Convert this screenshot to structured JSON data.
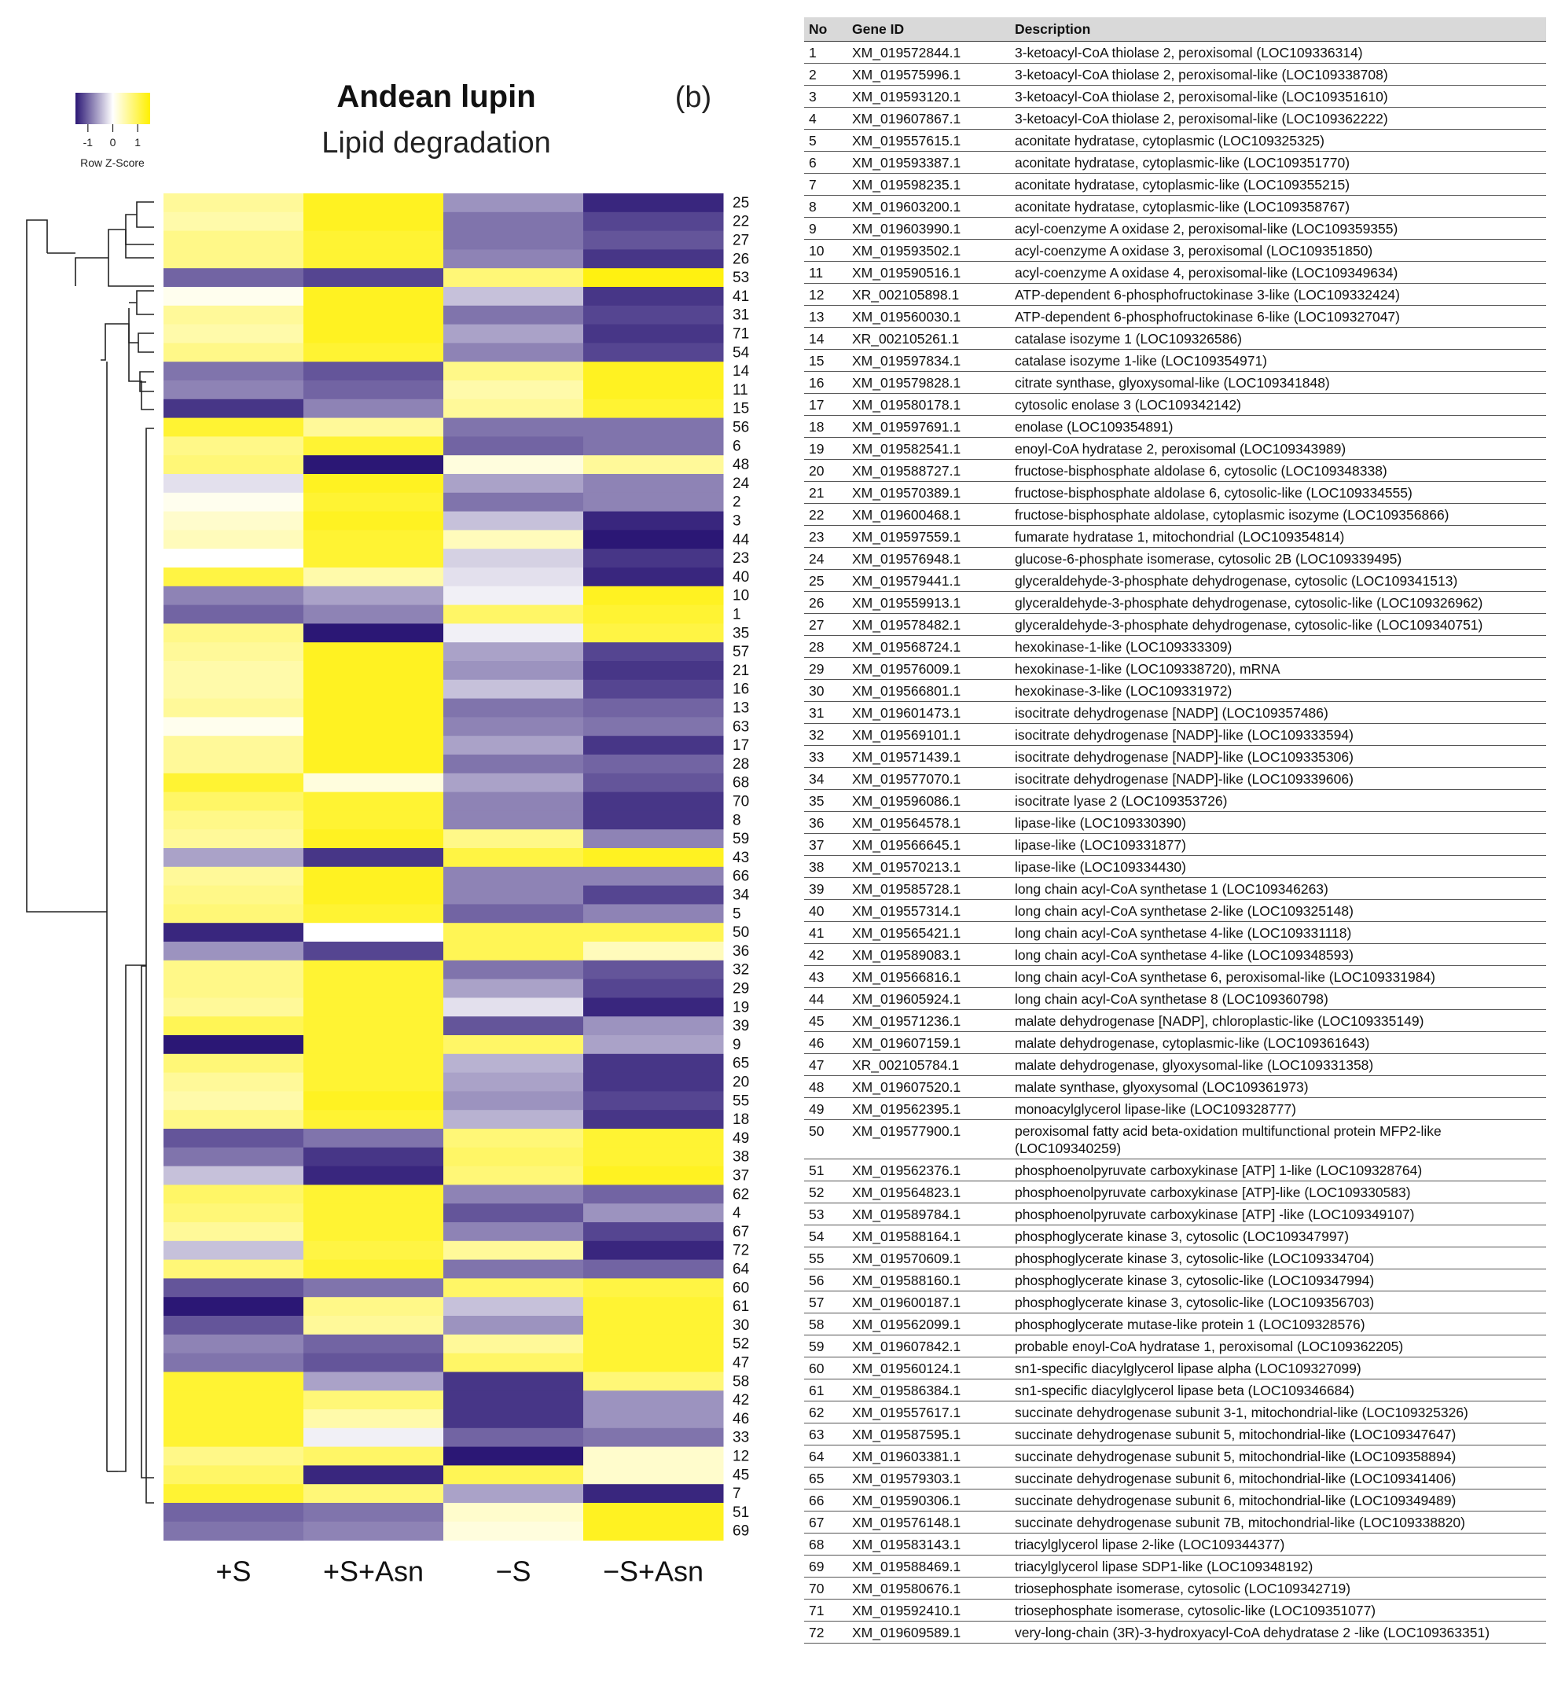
{
  "chart_data": {
    "type": "heatmap",
    "title": "Andean lupin",
    "subtitle": "Lipid degradation",
    "panel_label": "(b)",
    "colorkey": {
      "title": "Row Z-Score",
      "ticks": [
        "-1",
        "0",
        "1"
      ],
      "range": [
        -1.5,
        1.5
      ],
      "colors": {
        "low": "#2b1775",
        "mid": "#ffffff",
        "high": "#fff000"
      }
    },
    "columns": [
      "+S",
      "+S+Asn",
      "−S",
      "−S+Asn"
    ],
    "rows": [
      {
        "id": "25",
        "z": [
          0.6,
          1.3,
          -0.7,
          -1.4
        ]
      },
      {
        "id": "22",
        "z": [
          0.5,
          1.3,
          -0.9,
          -1.2
        ]
      },
      {
        "id": "27",
        "z": [
          0.7,
          1.2,
          -0.9,
          -1.1
        ]
      },
      {
        "id": "26",
        "z": [
          0.7,
          1.2,
          -0.8,
          -1.3
        ]
      },
      {
        "id": "53",
        "z": [
          -1.0,
          -1.2,
          0.8,
          1.4
        ]
      },
      {
        "id": "41",
        "z": [
          0.1,
          1.3,
          -0.4,
          -1.3
        ]
      },
      {
        "id": "31",
        "z": [
          0.6,
          1.3,
          -0.9,
          -1.2
        ]
      },
      {
        "id": "71",
        "z": [
          0.5,
          1.3,
          -0.6,
          -1.3
        ]
      },
      {
        "id": "54",
        "z": [
          0.7,
          1.2,
          -0.8,
          -1.2
        ]
      },
      {
        "id": "14",
        "z": [
          -0.9,
          -1.1,
          0.7,
          1.3
        ]
      },
      {
        "id": "11",
        "z": [
          -0.8,
          -1.0,
          0.5,
          1.3
        ]
      },
      {
        "id": "15",
        "z": [
          -1.3,
          -0.8,
          0.6,
          1.2
        ]
      },
      {
        "id": "56",
        "z": [
          1.2,
          0.6,
          -0.9,
          -0.9
        ]
      },
      {
        "id": "6",
        "z": [
          0.7,
          1.2,
          -1.0,
          -0.9
        ]
      },
      {
        "id": "48",
        "z": [
          0.8,
          -1.5,
          0.2,
          0.6
        ]
      },
      {
        "id": "24",
        "z": [
          -0.2,
          1.3,
          -0.6,
          -0.8
        ]
      },
      {
        "id": "2",
        "z": [
          0.1,
          1.2,
          -0.9,
          -0.8
        ]
      },
      {
        "id": "3",
        "z": [
          0.3,
          1.3,
          -0.4,
          -1.4
        ]
      },
      {
        "id": "44",
        "z": [
          0.4,
          1.2,
          0.4,
          -1.5
        ]
      },
      {
        "id": "23",
        "z": [
          0.0,
          1.2,
          -0.3,
          -1.3
        ]
      },
      {
        "id": "40",
        "z": [
          1.1,
          0.5,
          -0.2,
          -1.4
        ]
      },
      {
        "id": "10",
        "z": [
          -0.8,
          -0.6,
          -0.1,
          1.3
        ]
      },
      {
        "id": "1",
        "z": [
          -1.0,
          -0.8,
          0.9,
          1.2
        ]
      },
      {
        "id": "35",
        "z": [
          0.7,
          -1.5,
          -0.1,
          1.1
        ]
      },
      {
        "id": "57",
        "z": [
          0.6,
          1.3,
          -0.6,
          -1.2
        ]
      },
      {
        "id": "21",
        "z": [
          0.5,
          1.3,
          -0.7,
          -1.3
        ]
      },
      {
        "id": "16",
        "z": [
          0.5,
          1.3,
          -0.4,
          -1.2
        ]
      },
      {
        "id": "13",
        "z": [
          0.6,
          1.3,
          -0.9,
          -1.0
        ]
      },
      {
        "id": "63",
        "z": [
          0.1,
          1.3,
          -0.8,
          -0.9
        ]
      },
      {
        "id": "17",
        "z": [
          0.6,
          1.3,
          -0.6,
          -1.3
        ]
      },
      {
        "id": "28",
        "z": [
          0.6,
          1.3,
          -0.9,
          -1.0
        ]
      },
      {
        "id": "68",
        "z": [
          1.2,
          0.2,
          -0.6,
          -1.1
        ]
      },
      {
        "id": "70",
        "z": [
          0.9,
          1.2,
          -0.8,
          -1.3
        ]
      },
      {
        "id": "8",
        "z": [
          0.7,
          1.2,
          -0.8,
          -1.3
        ]
      },
      {
        "id": "59",
        "z": [
          0.6,
          1.3,
          0.7,
          -0.8
        ]
      },
      {
        "id": "43",
        "z": [
          -0.6,
          -1.3,
          1.1,
          1.3
        ]
      },
      {
        "id": "66",
        "z": [
          0.6,
          1.3,
          -0.8,
          -0.8
        ]
      },
      {
        "id": "34",
        "z": [
          0.7,
          1.3,
          -0.8,
          -1.2
        ]
      },
      {
        "id": "5",
        "z": [
          0.8,
          1.2,
          -1.0,
          -0.8
        ]
      },
      {
        "id": "50",
        "z": [
          -1.4,
          0.0,
          1.0,
          1.0
        ]
      },
      {
        "id": "36",
        "z": [
          -0.7,
          -1.2,
          1.0,
          0.4
        ]
      },
      {
        "id": "32",
        "z": [
          0.7,
          1.2,
          -0.9,
          -1.1
        ]
      },
      {
        "id": "29",
        "z": [
          0.7,
          1.2,
          -0.6,
          -1.2
        ]
      },
      {
        "id": "19",
        "z": [
          0.6,
          1.2,
          -0.2,
          -1.4
        ]
      },
      {
        "id": "39",
        "z": [
          1.0,
          1.2,
          -1.1,
          -0.7
        ]
      },
      {
        "id": "9",
        "z": [
          -1.5,
          1.2,
          0.9,
          -0.6
        ]
      },
      {
        "id": "65",
        "z": [
          0.8,
          1.2,
          -0.5,
          -1.3
        ]
      },
      {
        "id": "20",
        "z": [
          0.6,
          1.2,
          -0.6,
          -1.3
        ]
      },
      {
        "id": "55",
        "z": [
          0.5,
          1.3,
          -0.7,
          -1.2
        ]
      },
      {
        "id": "18",
        "z": [
          0.7,
          1.2,
          -0.5,
          -1.3
        ]
      },
      {
        "id": "49",
        "z": [
          -1.1,
          -0.9,
          0.8,
          1.2
        ]
      },
      {
        "id": "38",
        "z": [
          -0.9,
          -1.3,
          0.9,
          1.2
        ]
      },
      {
        "id": "37",
        "z": [
          -0.4,
          -1.4,
          0.8,
          1.3
        ]
      },
      {
        "id": "62",
        "z": [
          0.9,
          1.2,
          -0.8,
          -1.0
        ]
      },
      {
        "id": "4",
        "z": [
          0.8,
          1.2,
          -1.1,
          -0.7
        ]
      },
      {
        "id": "67",
        "z": [
          0.6,
          1.2,
          -0.8,
          -1.2
        ]
      },
      {
        "id": "72",
        "z": [
          -0.4,
          1.1,
          0.6,
          -1.4
        ]
      },
      {
        "id": "64",
        "z": [
          0.8,
          1.2,
          -0.9,
          -1.0
        ]
      },
      {
        "id": "60",
        "z": [
          -1.1,
          -0.9,
          0.9,
          1.1
        ]
      },
      {
        "id": "61",
        "z": [
          -1.5,
          0.7,
          -0.4,
          1.2
        ]
      },
      {
        "id": "30",
        "z": [
          -1.1,
          0.6,
          -0.7,
          1.2
        ]
      },
      {
        "id": "52",
        "z": [
          -0.8,
          -1.0,
          0.6,
          1.2
        ]
      },
      {
        "id": "47",
        "z": [
          -0.9,
          -1.1,
          0.9,
          1.2
        ]
      },
      {
        "id": "58",
        "z": [
          1.2,
          -0.6,
          -1.3,
          0.8
        ]
      },
      {
        "id": "42",
        "z": [
          1.2,
          0.8,
          -1.3,
          -0.7
        ]
      },
      {
        "id": "46",
        "z": [
          1.2,
          0.5,
          -1.3,
          -0.7
        ]
      },
      {
        "id": "33",
        "z": [
          1.2,
          -0.1,
          -1.0,
          -0.9
        ]
      },
      {
        "id": "12",
        "z": [
          0.7,
          0.9,
          -1.5,
          0.3
        ]
      },
      {
        "id": "45",
        "z": [
          0.9,
          -1.4,
          1.0,
          0.3
        ]
      },
      {
        "id": "7",
        "z": [
          1.2,
          0.8,
          -0.6,
          -1.4
        ]
      },
      {
        "id": "51",
        "z": [
          -1.0,
          -0.9,
          0.3,
          1.3
        ]
      },
      {
        "id": "69",
        "z": [
          -0.9,
          -0.8,
          0.2,
          1.3
        ]
      }
    ]
  },
  "gene_table": {
    "headers": [
      "No",
      "Gene ID",
      "Description"
    ],
    "rows": [
      [
        "1",
        "XM_019572844.1",
        "3-ketoacyl-CoA thiolase 2, peroxisomal (LOC109336314)"
      ],
      [
        "2",
        "XM_019575996.1",
        "3-ketoacyl-CoA thiolase 2, peroxisomal-like (LOC109338708)"
      ],
      [
        "3",
        "XM_019593120.1",
        "3-ketoacyl-CoA thiolase 2, peroxisomal-like (LOC109351610)"
      ],
      [
        "4",
        "XM_019607867.1",
        "3-ketoacyl-CoA thiolase 2, peroxisomal-like (LOC109362222)"
      ],
      [
        "5",
        "XM_019557615.1",
        "aconitate hydratase, cytoplasmic (LOC109325325)"
      ],
      [
        "6",
        "XM_019593387.1",
        "aconitate hydratase, cytoplasmic-like (LOC109351770)"
      ],
      [
        "7",
        "XM_019598235.1",
        "aconitate hydratase, cytoplasmic-like (LOC109355215)"
      ],
      [
        "8",
        "XM_019603200.1",
        "aconitate hydratase, cytoplasmic-like (LOC109358767)"
      ],
      [
        "9",
        "XM_019603990.1",
        "acyl-coenzyme A oxidase 2, peroxisomal-like (LOC109359355)"
      ],
      [
        "10",
        "XM_019593502.1",
        "acyl-coenzyme A oxidase 3, peroxisomal (LOC109351850)"
      ],
      [
        "11",
        "XM_019590516.1",
        "acyl-coenzyme A oxidase 4, peroxisomal-like (LOC109349634)"
      ],
      [
        "12",
        "XR_002105898.1",
        "ATP-dependent 6-phosphofructokinase 3-like (LOC109332424)"
      ],
      [
        "13",
        "XM_019560030.1",
        "ATP-dependent 6-phosphofructokinase 6-like (LOC109327047)"
      ],
      [
        "14",
        "XR_002105261.1",
        "catalase isozyme 1 (LOC109326586)"
      ],
      [
        "15",
        "XM_019597834.1",
        "catalase isozyme 1-like (LOC109354971)"
      ],
      [
        "16",
        "XM_019579828.1",
        "citrate synthase, glyoxysomal-like (LOC109341848)"
      ],
      [
        "17",
        "XM_019580178.1",
        "cytosolic enolase 3 (LOC109342142)"
      ],
      [
        "18",
        "XM_019597691.1",
        "enolase (LOC109354891)"
      ],
      [
        "19",
        "XM_019582541.1",
        "enoyl-CoA hydratase 2, peroxisomal (LOC109343989)"
      ],
      [
        "20",
        "XM_019588727.1",
        "fructose-bisphosphate aldolase 6, cytosolic (LOC109348338)"
      ],
      [
        "21",
        "XM_019570389.1",
        "fructose-bisphosphate aldolase 6, cytosolic-like (LOC109334555)"
      ],
      [
        "22",
        "XM_019600468.1",
        "fructose-bisphosphate aldolase, cytoplasmic isozyme (LOC109356866)"
      ],
      [
        "23",
        "XM_019597559.1",
        "fumarate hydratase 1, mitochondrial (LOC109354814)"
      ],
      [
        "24",
        "XM_019576948.1",
        "glucose-6-phosphate isomerase, cytosolic 2B (LOC109339495)"
      ],
      [
        "25",
        "XM_019579441.1",
        "glyceraldehyde-3-phosphate dehydrogenase, cytosolic (LOC109341513)"
      ],
      [
        "26",
        "XM_019559913.1",
        "glyceraldehyde-3-phosphate dehydrogenase, cytosolic-like (LOC109326962)"
      ],
      [
        "27",
        "XM_019578482.1",
        "glyceraldehyde-3-phosphate dehydrogenase, cytosolic-like (LOC109340751)"
      ],
      [
        "28",
        "XM_019568724.1",
        "hexokinase-1-like (LOC109333309)"
      ],
      [
        "29",
        "XM_019576009.1",
        "hexokinase-1-like (LOC109338720), mRNA"
      ],
      [
        "30",
        "XM_019566801.1",
        "hexokinase-3-like (LOC109331972)"
      ],
      [
        "31",
        "XM_019601473.1",
        "isocitrate dehydrogenase [NADP] (LOC109357486)"
      ],
      [
        "32",
        "XM_019569101.1",
        "isocitrate dehydrogenase [NADP]-like (LOC109333594)"
      ],
      [
        "33",
        "XM_019571439.1",
        "isocitrate dehydrogenase [NADP]-like (LOC109335306)"
      ],
      [
        "34",
        "XM_019577070.1",
        "isocitrate dehydrogenase [NADP]-like (LOC109339606)"
      ],
      [
        "35",
        "XM_019596086.1",
        "isocitrate lyase 2 (LOC109353726)"
      ],
      [
        "36",
        "XM_019564578.1",
        "lipase-like (LOC109330390)"
      ],
      [
        "37",
        "XM_019566645.1",
        "lipase-like (LOC109331877)"
      ],
      [
        "38",
        "XM_019570213.1",
        "lipase-like (LOC109334430)"
      ],
      [
        "39",
        "XM_019585728.1",
        "long chain acyl-CoA synthetase 1 (LOC109346263)"
      ],
      [
        "40",
        "XM_019557314.1",
        "long chain acyl-CoA synthetase 2-like (LOC109325148)"
      ],
      [
        "41",
        "XM_019565421.1",
        "long chain acyl-CoA synthetase 4-like (LOC109331118)"
      ],
      [
        "42",
        "XM_019589083.1",
        "long chain acyl-CoA synthetase 4-like (LOC109348593)"
      ],
      [
        "43",
        "XM_019566816.1",
        "long chain acyl-CoA synthetase 6, peroxisomal-like (LOC109331984)"
      ],
      [
        "44",
        "XM_019605924.1",
        "long chain acyl-CoA synthetase 8 (LOC109360798)"
      ],
      [
        "45",
        "XM_019571236.1",
        "malate dehydrogenase [NADP], chloroplastic-like (LOC109335149)"
      ],
      [
        "46",
        "XM_019607159.1",
        "malate dehydrogenase, cytoplasmic-like (LOC109361643)"
      ],
      [
        "47",
        "XR_002105784.1",
        "malate dehydrogenase, glyoxysomal-like (LOC109331358)"
      ],
      [
        "48",
        "XM_019607520.1",
        "malate synthase, glyoxysomal (LOC109361973)"
      ],
      [
        "49",
        "XM_019562395.1",
        "monoacylglycerol lipase-like (LOC109328777)"
      ],
      [
        "50",
        "XM_019577900.1",
        "peroxisomal fatty acid beta-oxidation multifunctional protein MFP2-like (LOC109340259)"
      ],
      [
        "51",
        "XM_019562376.1",
        "phosphoenolpyruvate carboxykinase [ATP] 1-like (LOC109328764)"
      ],
      [
        "52",
        "XM_019564823.1",
        "phosphoenolpyruvate carboxykinase [ATP]-like (LOC109330583)"
      ],
      [
        "53",
        "XM_019589784.1",
        "phosphoenolpyruvate carboxykinase [ATP] -like (LOC109349107)"
      ],
      [
        "54",
        "XM_019588164.1",
        "phosphoglycerate kinase 3, cytosolic (LOC109347997)"
      ],
      [
        "55",
        "XM_019570609.1",
        "phosphoglycerate kinase 3, cytosolic-like (LOC109334704)"
      ],
      [
        "56",
        "XM_019588160.1",
        "phosphoglycerate kinase 3, cytosolic-like (LOC109347994)"
      ],
      [
        "57",
        "XM_019600187.1",
        "phosphoglycerate kinase 3, cytosolic-like (LOC109356703)"
      ],
      [
        "58",
        "XM_019562099.1",
        "phosphoglycerate mutase-like protein 1 (LOC109328576)"
      ],
      [
        "59",
        "XM_019607842.1",
        "probable enoyl-CoA hydratase 1, peroxisomal (LOC109362205)"
      ],
      [
        "60",
        "XM_019560124.1",
        "sn1-specific diacylglycerol lipase alpha (LOC109327099)"
      ],
      [
        "61",
        "XM_019586384.1",
        "sn1-specific diacylglycerol lipase beta (LOC109346684)"
      ],
      [
        "62",
        "XM_019557617.1",
        "succinate dehydrogenase subunit 3-1, mitochondrial-like (LOC109325326)"
      ],
      [
        "63",
        "XM_019587595.1",
        "succinate dehydrogenase subunit 5, mitochondrial-like (LOC109347647)"
      ],
      [
        "64",
        "XM_019603381.1",
        "succinate dehydrogenase subunit 5, mitochondrial-like (LOC109358894)"
      ],
      [
        "65",
        "XM_019579303.1",
        "succinate dehydrogenase subunit 6, mitochondrial-like (LOC109341406)"
      ],
      [
        "66",
        "XM_019590306.1",
        "succinate dehydrogenase subunit 6, mitochondrial-like (LOC109349489)"
      ],
      [
        "67",
        "XM_019576148.1",
        "succinate dehydrogenase subunit 7B, mitochondrial-like (LOC109338820)"
      ],
      [
        "68",
        "XM_019583143.1",
        "triacylglycerol lipase 2-like (LOC109344377)"
      ],
      [
        "69",
        "XM_019588469.1",
        "triacylglycerol lipase SDP1-like (LOC109348192)"
      ],
      [
        "70",
        "XM_019580676.1",
        "triosephosphate isomerase, cytosolic (LOC109342719)"
      ],
      [
        "71",
        "XM_019592410.1",
        "triosephosphate isomerase, cytosolic-like (LOC109351077)"
      ],
      [
        "72",
        "XM_019609589.1",
        "very-long-chain (3R)-3-hydroxyacyl-CoA dehydratase 2 -like (LOC109363351)"
      ]
    ]
  }
}
